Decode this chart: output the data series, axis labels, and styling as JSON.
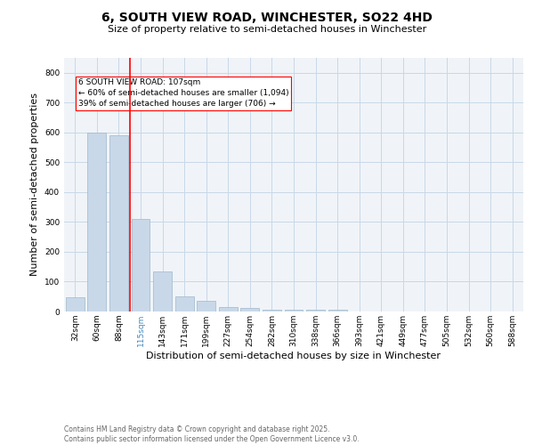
{
  "title": "6, SOUTH VIEW ROAD, WINCHESTER, SO22 4HD",
  "subtitle": "Size of property relative to semi-detached houses in Winchester",
  "xlabel": "Distribution of semi-detached houses by size in Winchester",
  "ylabel": "Number of semi-detached properties",
  "bar_color": "#c8d8e8",
  "bar_edge_color": "#a0b8cc",
  "grid_color": "#c8d8e8",
  "bg_color": "#f0f4f8",
  "categories": [
    "32sqm",
    "60sqm",
    "88sqm",
    "115sqm",
    "143sqm",
    "171sqm",
    "199sqm",
    "227sqm",
    "254sqm",
    "282sqm",
    "310sqm",
    "338sqm",
    "366sqm",
    "393sqm",
    "421sqm",
    "449sqm",
    "477sqm",
    "505sqm",
    "532sqm",
    "560sqm",
    "588sqm"
  ],
  "values": [
    48,
    600,
    590,
    310,
    135,
    50,
    35,
    14,
    12,
    7,
    5,
    5,
    5,
    0,
    0,
    0,
    0,
    0,
    0,
    0,
    0
  ],
  "ylim": [
    0,
    850
  ],
  "yticks": [
    0,
    100,
    200,
    300,
    400,
    500,
    600,
    700,
    800
  ],
  "property_line_x": 2.5,
  "annotation_text_line1": "6 SOUTH VIEW ROAD: 107sqm",
  "annotation_text_line2": "← 60% of semi-detached houses are smaller (1,094)",
  "annotation_text_line3": "39% of semi-detached houses are larger (706) →",
  "footer_line1": "Contains HM Land Registry data © Crown copyright and database right 2025.",
  "footer_line2": "Contains public sector information licensed under the Open Government Licence v3.0.",
  "title_fontsize": 10,
  "subtitle_fontsize": 8,
  "axis_label_fontsize": 8,
  "tick_fontsize": 6.5,
  "annotation_fontsize": 6.5,
  "footer_fontsize": 5.5
}
